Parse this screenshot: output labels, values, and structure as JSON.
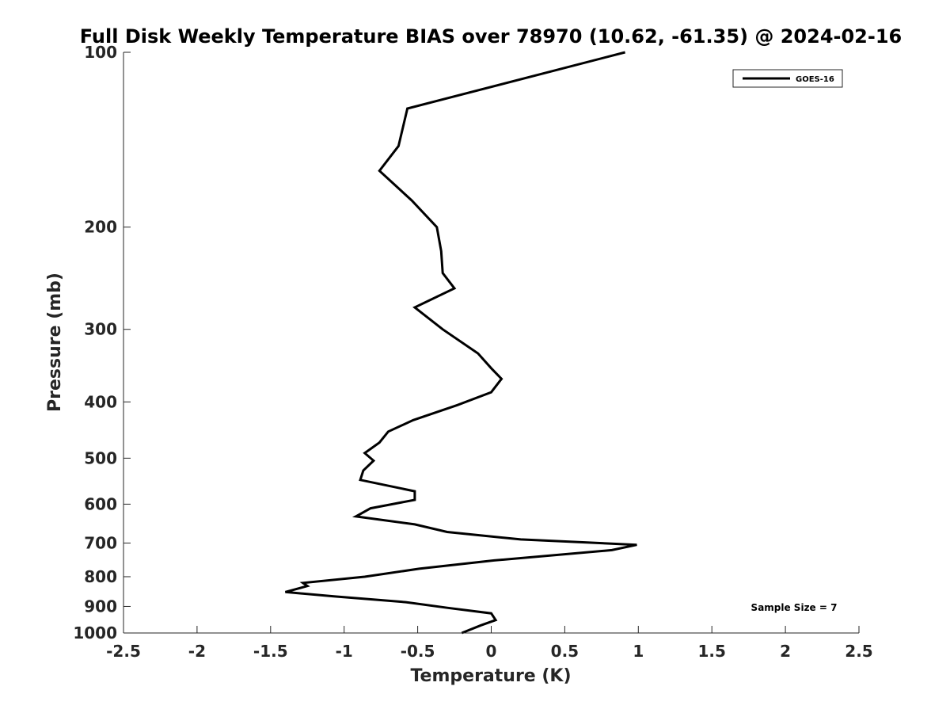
{
  "chart_data": {
    "type": "line",
    "title": "Full Disk Weekly Temperature BIAS over 78970 (10.62, -61.35) @ 2024-02-16",
    "xlabel": "Temperature (K)",
    "ylabel": "Pressure (mb)",
    "xlim": [
      -2.5,
      2.5
    ],
    "ylim": [
      1000,
      100
    ],
    "y_scale": "log",
    "y_reversed": true,
    "grid": false,
    "legend_position": "top-right",
    "xticks": [
      -2.5,
      -2,
      -1.5,
      -1,
      -0.5,
      0,
      0.5,
      1,
      1.5,
      2,
      2.5
    ],
    "xtick_labels": [
      "-2.5",
      "-2",
      "-1.5",
      "-1",
      "-0.5",
      "0",
      "0.5",
      "1",
      "1.5",
      "2",
      "2.5"
    ],
    "yticks": [
      100,
      200,
      300,
      400,
      500,
      600,
      700,
      800,
      900,
      1000
    ],
    "ytick_labels": [
      "100",
      "200",
      "300",
      "400",
      "500",
      "600",
      "700",
      "800",
      "900",
      "1000"
    ],
    "series": [
      {
        "name": "GOES-16",
        "color": "#000000",
        "points": [
          {
            "t": 0.91,
            "p": 100
          },
          {
            "t": -0.57,
            "p": 125
          },
          {
            "t": -0.63,
            "p": 145
          },
          {
            "t": -0.76,
            "p": 160
          },
          {
            "t": -0.54,
            "p": 180
          },
          {
            "t": -0.37,
            "p": 200
          },
          {
            "t": -0.34,
            "p": 220
          },
          {
            "t": -0.33,
            "p": 240
          },
          {
            "t": -0.25,
            "p": 255
          },
          {
            "t": -0.52,
            "p": 275
          },
          {
            "t": -0.33,
            "p": 300
          },
          {
            "t": -0.09,
            "p": 330
          },
          {
            "t": 0.0,
            "p": 350
          },
          {
            "t": 0.07,
            "p": 365
          },
          {
            "t": 0.0,
            "p": 385
          },
          {
            "t": -0.23,
            "p": 405
          },
          {
            "t": -0.53,
            "p": 430
          },
          {
            "t": -0.7,
            "p": 450
          },
          {
            "t": -0.76,
            "p": 470
          },
          {
            "t": -0.86,
            "p": 490
          },
          {
            "t": -0.8,
            "p": 505
          },
          {
            "t": -0.87,
            "p": 525
          },
          {
            "t": -0.89,
            "p": 545
          },
          {
            "t": -0.52,
            "p": 570
          },
          {
            "t": -0.52,
            "p": 590
          },
          {
            "t": -0.82,
            "p": 610
          },
          {
            "t": -0.92,
            "p": 630
          },
          {
            "t": -0.52,
            "p": 650
          },
          {
            "t": -0.3,
            "p": 670
          },
          {
            "t": 0.2,
            "p": 690
          },
          {
            "t": 0.99,
            "p": 705
          },
          {
            "t": 0.82,
            "p": 720
          },
          {
            "t": 0.02,
            "p": 750
          },
          {
            "t": -0.49,
            "p": 775
          },
          {
            "t": -0.86,
            "p": 800
          },
          {
            "t": -1.28,
            "p": 820
          },
          {
            "t": -1.25,
            "p": 830
          },
          {
            "t": -1.4,
            "p": 850
          },
          {
            "t": -1.07,
            "p": 865
          },
          {
            "t": -0.58,
            "p": 885
          },
          {
            "t": -0.3,
            "p": 905
          },
          {
            "t": 0.0,
            "p": 925
          },
          {
            "t": 0.03,
            "p": 950
          },
          {
            "t": -0.07,
            "p": 970
          },
          {
            "t": -0.2,
            "p": 1000
          }
        ]
      }
    ],
    "annotation": "Sample Size = 7"
  }
}
